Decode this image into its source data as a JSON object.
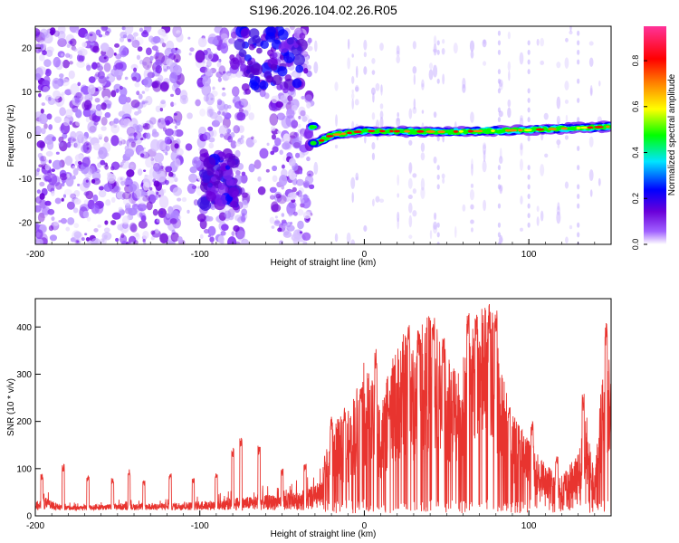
{
  "title": "S196.2026.104.02.26.R05",
  "chart_data": [
    {
      "type": "heatmap",
      "xlabel": "Height of straight line (km)",
      "ylabel": "Frequency (Hz)",
      "xlim": [
        -200,
        150
      ],
      "ylim": [
        -25,
        25
      ],
      "xticks": [
        -200,
        -100,
        0,
        100
      ],
      "yticks": [
        -20,
        -10,
        0,
        10,
        20
      ],
      "colorbar": {
        "label": "Normalized spectral amplitude",
        "range": [
          0,
          0.95
        ],
        "ticks": [
          0,
          0.2,
          0.4,
          0.6,
          0.8
        ],
        "tick_labels": [
          "0.0",
          "0.2",
          "0.4",
          "0.6",
          "0.8"
        ],
        "colormap": [
          "#ffffff",
          "#7f00ff",
          "#0000ff",
          "#00e5ff",
          "#00ff00",
          "#ffff00",
          "#ff8000",
          "#ff0000",
          "#ff3399"
        ]
      },
      "features": {
        "noise_region": [
          -200,
          -32
        ],
        "signal_track": {
          "x_start": -32,
          "x_end": 150,
          "points": [
            [
              -30,
              -2
            ],
            [
              -20,
              0
            ],
            [
              0,
              1
            ],
            [
              50,
              0.8
            ],
            [
              100,
              1.2
            ],
            [
              150,
              2
            ]
          ]
        },
        "blob_clusters": [
          {
            "x_range": [
              -98,
              -78
            ],
            "y_range": [
              -16,
              -4
            ]
          },
          {
            "x_range": [
              -76,
              -38
            ],
            "y_range": [
              10,
              24
            ]
          }
        ]
      }
    },
    {
      "type": "line",
      "xlabel": "Height of straight line (km)",
      "ylabel": "SNR (10 * v/v)",
      "xlim": [
        -200,
        150
      ],
      "ylim": [
        0,
        460
      ],
      "xticks": [
        -200,
        -100,
        0,
        100
      ],
      "yticks": [
        0,
        100,
        200,
        300,
        400
      ],
      "color": "#e8342f",
      "envelope": [
        [
          -200,
          25
        ],
        [
          -195,
          60
        ],
        [
          -185,
          30
        ],
        [
          -175,
          28
        ],
        [
          -165,
          30
        ],
        [
          -150,
          35
        ],
        [
          -130,
          35
        ],
        [
          -110,
          40
        ],
        [
          -95,
          45
        ],
        [
          -80,
          55
        ],
        [
          -70,
          60
        ],
        [
          -60,
          65
        ],
        [
          -50,
          70
        ],
        [
          -40,
          80
        ],
        [
          -25,
          110
        ],
        [
          -20,
          180
        ],
        [
          -10,
          200
        ],
        [
          -5,
          250
        ],
        [
          0,
          300
        ],
        [
          5,
          260
        ],
        [
          10,
          220
        ],
        [
          15,
          280
        ],
        [
          20,
          330
        ],
        [
          25,
          360
        ],
        [
          30,
          320
        ],
        [
          35,
          380
        ],
        [
          40,
          390
        ],
        [
          45,
          360
        ],
        [
          50,
          330
        ],
        [
          55,
          300
        ],
        [
          60,
          310
        ],
        [
          65,
          380
        ],
        [
          70,
          400
        ],
        [
          75,
          420
        ],
        [
          80,
          380
        ],
        [
          85,
          260
        ],
        [
          90,
          200
        ],
        [
          95,
          180
        ],
        [
          100,
          150
        ],
        [
          110,
          100
        ],
        [
          120,
          80
        ],
        [
          130,
          120
        ],
        [
          135,
          200
        ],
        [
          140,
          80
        ],
        [
          145,
          300
        ],
        [
          150,
          380
        ]
      ],
      "spikes": [
        [
          -196,
          90
        ],
        [
          -183,
          110
        ],
        [
          -168,
          85
        ],
        [
          -153,
          80
        ],
        [
          -143,
          100
        ],
        [
          -134,
          75
        ],
        [
          -118,
          90
        ],
        [
          -104,
          80
        ],
        [
          -90,
          90
        ],
        [
          -80,
          145
        ],
        [
          -75,
          170
        ],
        [
          -64,
          150
        ],
        [
          -50,
          100
        ],
        [
          -36,
          110
        ],
        [
          -20,
          210
        ],
        [
          -12,
          230
        ],
        [
          -2,
          280
        ],
        [
          7,
          360
        ],
        [
          15,
          240
        ],
        [
          27,
          410
        ],
        [
          33,
          400
        ],
        [
          42,
          420
        ],
        [
          48,
          380
        ],
        [
          63,
          440
        ],
        [
          68,
          430
        ],
        [
          76,
          450
        ],
        [
          80,
          455
        ],
        [
          88,
          230
        ],
        [
          102,
          200
        ],
        [
          117,
          130
        ],
        [
          133,
          260
        ],
        [
          147,
          415
        ]
      ]
    }
  ]
}
